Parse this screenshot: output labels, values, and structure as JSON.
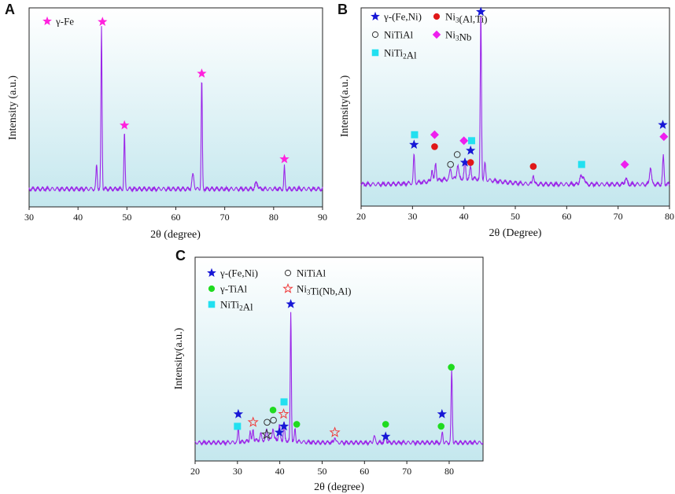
{
  "figure": {
    "panels": [
      {
        "letter": "A",
        "x_title": "2θ (degree)",
        "y_title": "Intensity (a.u.)"
      },
      {
        "letter": "B",
        "x_title": "2θ (Degree)",
        "y_title": "Intensity(a.u.)"
      },
      {
        "letter": "C",
        "x_title": "2θ (degree)",
        "y_title": "Intensity(a.u.)"
      }
    ]
  },
  "colors": {
    "trace": "#9b27e8",
    "background_top": "#ffffff",
    "background_bottom": "#c4e7ee",
    "star_magenta": "#ff22dd",
    "star_blue": "#1717d6",
    "circle_red": "#e01818",
    "diamond_magenta": "#ee1fee",
    "square_cyan": "#22e0f0",
    "circle_green": "#1fdb1f",
    "star_red_outline": "#f03c3c",
    "circle_open": "#333333"
  },
  "chart_data": [
    {
      "panel": "A",
      "type": "line",
      "xlabel": "2θ (degree)",
      "ylabel": "Intensity (a.u.)",
      "xlim": [
        30,
        90
      ],
      "ylim": [
        0,
        100
      ],
      "xticks": [
        30,
        40,
        50,
        60,
        70,
        80,
        90
      ],
      "baseline": 9,
      "noise": 1.3,
      "peaks": [
        {
          "x": 43.8,
          "h": 12,
          "w": 0.18
        },
        {
          "x": 44.8,
          "h": 81,
          "w": 0.16
        },
        {
          "x": 49.5,
          "h": 28,
          "w": 0.16
        },
        {
          "x": 63.5,
          "h": 7,
          "w": 0.3
        },
        {
          "x": 65.3,
          "h": 55,
          "w": 0.16
        },
        {
          "x": 76.5,
          "h": 3,
          "w": 0.4
        },
        {
          "x": 82.2,
          "h": 11,
          "w": 0.16
        }
      ],
      "legend": [
        {
          "marker": "star",
          "color": "#ff22dd",
          "label": "γ-Fe",
          "sub": ""
        }
      ],
      "annotations": [
        {
          "marker": "star",
          "color": "#ff22dd",
          "x": 45.0,
          "y": 93
        },
        {
          "marker": "star",
          "color": "#ff22dd",
          "x": 49.5,
          "y": 41
        },
        {
          "marker": "star",
          "color": "#ff22dd",
          "x": 65.3,
          "y": 67
        },
        {
          "marker": "star",
          "color": "#ff22dd",
          "x": 82.2,
          "y": 24
        }
      ]
    },
    {
      "panel": "B",
      "type": "line",
      "xlabel": "2θ (Degree)",
      "ylabel": "Intensity(a.u.)",
      "xlim": [
        20,
        80
      ],
      "ylim": [
        0,
        100
      ],
      "xticks": [
        20,
        30,
        40,
        50,
        60,
        70,
        80
      ],
      "baseline": 11,
      "noise": 1.3,
      "peaks": [
        {
          "x": 30.3,
          "h": 14,
          "w": 0.18
        },
        {
          "x": 33.8,
          "h": 6,
          "w": 0.2
        },
        {
          "x": 34.5,
          "h": 9,
          "w": 0.2
        },
        {
          "x": 37.4,
          "h": 5,
          "w": 0.25
        },
        {
          "x": 38.8,
          "h": 7,
          "w": 0.25
        },
        {
          "x": 40.2,
          "h": 9,
          "w": 0.2
        },
        {
          "x": 41.3,
          "h": 6,
          "w": 0.2
        },
        {
          "x": 43.3,
          "h": 85,
          "w": 0.16
        },
        {
          "x": 44.1,
          "h": 8,
          "w": 0.2
        },
        {
          "x": 53.5,
          "h": 5,
          "w": 0.2
        },
        {
          "x": 62.7,
          "h": 4,
          "w": 0.3
        },
        {
          "x": 63.3,
          "h": 4,
          "w": 0.3
        },
        {
          "x": 71.5,
          "h": 3,
          "w": 0.3
        },
        {
          "x": 76.3,
          "h": 9,
          "w": 0.25
        },
        {
          "x": 78.8,
          "h": 14,
          "w": 0.2
        }
      ],
      "legend": [
        {
          "marker": "star",
          "color": "#1717d6",
          "label": "γ-(Fe,Ni)",
          "sub": ""
        },
        {
          "marker": "circle",
          "color": "#e01818",
          "label": "Ni3(Al,Ti)",
          "sub": ""
        },
        {
          "marker": "open-circle",
          "color": "#333333",
          "label": "NiTiAl",
          "sub": ""
        },
        {
          "marker": "diamond",
          "color": "#ee1fee",
          "label": "Ni3Nb",
          "sub": ""
        },
        {
          "marker": "square",
          "color": "#22e0f0",
          "label": "NiTi2Al",
          "sub": ""
        }
      ],
      "annotations": [
        {
          "marker": "square",
          "color": "#22e0f0",
          "x": 30.4,
          "y": 36
        },
        {
          "marker": "star",
          "color": "#1717d6",
          "x": 30.3,
          "y": 31
        },
        {
          "marker": "diamond",
          "color": "#ee1fee",
          "x": 34.3,
          "y": 36
        },
        {
          "marker": "circle",
          "color": "#e01818",
          "x": 34.3,
          "y": 30
        },
        {
          "marker": "open-circle",
          "color": "#333333",
          "x": 37.4,
          "y": 21
        },
        {
          "marker": "open-circle",
          "color": "#333333",
          "x": 38.7,
          "y": 26
        },
        {
          "marker": "diamond",
          "color": "#ee1fee",
          "x": 40.0,
          "y": 33
        },
        {
          "marker": "star",
          "color": "#1717d6",
          "x": 40.2,
          "y": 22
        },
        {
          "marker": "square",
          "color": "#22e0f0",
          "x": 41.5,
          "y": 33
        },
        {
          "marker": "star",
          "color": "#1717d6",
          "x": 41.3,
          "y": 28
        },
        {
          "marker": "circle",
          "color": "#e01818",
          "x": 41.3,
          "y": 22
        },
        {
          "marker": "star",
          "color": "#1717d6",
          "x": 43.3,
          "y": 98
        },
        {
          "marker": "circle",
          "color": "#e01818",
          "x": 53.5,
          "y": 20
        },
        {
          "marker": "square",
          "color": "#22e0f0",
          "x": 62.9,
          "y": 21
        },
        {
          "marker": "diamond",
          "color": "#ee1fee",
          "x": 71.3,
          "y": 21
        },
        {
          "marker": "star",
          "color": "#1717d6",
          "x": 78.7,
          "y": 41
        },
        {
          "marker": "diamond",
          "color": "#ee1fee",
          "x": 78.9,
          "y": 35
        }
      ]
    },
    {
      "panel": "C",
      "type": "line",
      "xlabel": "2θ (degree)",
      "ylabel": "Intensity(a.u.)",
      "xlim": [
        20,
        88
      ],
      "ylim": [
        0,
        100
      ],
      "xticks": [
        20,
        30,
        40,
        50,
        60,
        70,
        80
      ],
      "baseline": 9,
      "noise": 1.2,
      "peaks": [
        {
          "x": 30.2,
          "h": 8,
          "w": 0.18
        },
        {
          "x": 33.0,
          "h": 5,
          "w": 0.2
        },
        {
          "x": 33.7,
          "h": 6,
          "w": 0.2
        },
        {
          "x": 35.5,
          "h": 3,
          "w": 0.25
        },
        {
          "x": 36.9,
          "h": 5,
          "w": 0.25
        },
        {
          "x": 38.4,
          "h": 6,
          "w": 0.25
        },
        {
          "x": 39.9,
          "h": 7,
          "w": 0.25
        },
        {
          "x": 41.0,
          "h": 9,
          "w": 0.2
        },
        {
          "x": 42.6,
          "h": 63,
          "w": 0.18
        },
        {
          "x": 43.6,
          "h": 6,
          "w": 0.2
        },
        {
          "x": 53.0,
          "h": 3,
          "w": 0.25
        },
        {
          "x": 62.3,
          "h": 3,
          "w": 0.3
        },
        {
          "x": 65.0,
          "h": 3,
          "w": 0.3
        },
        {
          "x": 78.4,
          "h": 5,
          "w": 0.2
        },
        {
          "x": 80.6,
          "h": 35,
          "w": 0.2
        }
      ],
      "legend": [
        {
          "marker": "star",
          "color": "#1717d6",
          "label": "γ-(Fe,Ni)",
          "sub": ""
        },
        {
          "marker": "open-circle",
          "color": "#333333",
          "label": "NiTiAl",
          "sub": ""
        },
        {
          "marker": "circle",
          "color": "#1fdb1f",
          "label": "γ-TiAl",
          "sub": ""
        },
        {
          "marker": "open-star",
          "color": "#f03c3c",
          "label": "Ni3Ti(Nb,Al)",
          "sub": ""
        },
        {
          "marker": "square",
          "color": "#22e0f0",
          "label": "NiTi2Al",
          "sub": ""
        }
      ],
      "annotations": [
        {
          "marker": "star",
          "color": "#1717d6",
          "x": 30.2,
          "y": 23
        },
        {
          "marker": "square",
          "color": "#22e0f0",
          "x": 30.0,
          "y": 17
        },
        {
          "marker": "open-star",
          "color": "#f03c3c",
          "x": 33.7,
          "y": 19
        },
        {
          "marker": "open-circle",
          "color": "#333333",
          "x": 37.0,
          "y": 19
        },
        {
          "marker": "open-star",
          "color": "#333333",
          "x": 36.9,
          "y": 13
        },
        {
          "marker": "circle",
          "color": "#1fdb1f",
          "x": 38.4,
          "y": 25
        },
        {
          "marker": "open-circle",
          "color": "#333333",
          "x": 38.5,
          "y": 20
        },
        {
          "marker": "star",
          "color": "#1717d6",
          "x": 39.9,
          "y": 14
        },
        {
          "marker": "square",
          "color": "#22e0f0",
          "x": 41.0,
          "y": 29
        },
        {
          "marker": "open-star",
          "color": "#f03c3c",
          "x": 40.9,
          "y": 23
        },
        {
          "marker": "star",
          "color": "#1717d6",
          "x": 41.0,
          "y": 17
        },
        {
          "marker": "star",
          "color": "#1717d6",
          "x": 42.6,
          "y": 77
        },
        {
          "marker": "circle",
          "color": "#1fdb1f",
          "x": 44.0,
          "y": 18
        },
        {
          "marker": "open-star",
          "color": "#f03c3c",
          "x": 53.0,
          "y": 14
        },
        {
          "marker": "circle",
          "color": "#1fdb1f",
          "x": 65.0,
          "y": 18
        },
        {
          "marker": "star",
          "color": "#1717d6",
          "x": 65.0,
          "y": 12
        },
        {
          "marker": "star",
          "color": "#1717d6",
          "x": 78.3,
          "y": 23
        },
        {
          "marker": "circle",
          "color": "#1fdb1f",
          "x": 78.1,
          "y": 17
        },
        {
          "marker": "circle",
          "color": "#1fdb1f",
          "x": 80.5,
          "y": 46
        }
      ]
    }
  ]
}
